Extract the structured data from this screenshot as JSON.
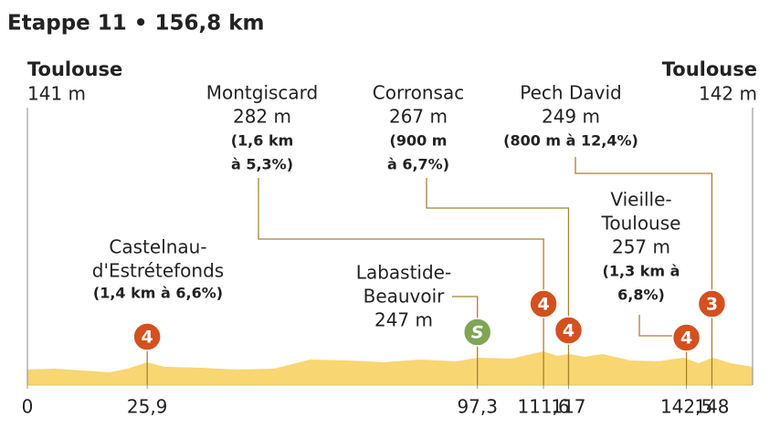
{
  "chart_data": {
    "type": "profile",
    "title": "Etappe 11 • 156,8 km",
    "xlim": [
      0,
      156.8
    ],
    "xticks": [
      0,
      {
        "value": 25.9,
        "label": "25,9"
      },
      {
        "value": 97.3,
        "label": "97,3"
      },
      {
        "value": 111.6,
        "label": "111,6"
      },
      117,
      {
        "value": 142.5,
        "label": "142,5"
      },
      148
    ],
    "start": {
      "name": "Toulouse",
      "altitude": "141 m"
    },
    "finish": {
      "name": "Toulouse",
      "altitude": "142 m"
    },
    "points": [
      {
        "name": [
          "Castelnau-",
          "d'Estrétefonds"
        ],
        "detail": [
          "(1,4 km à 6,6%)"
        ],
        "km": 25.9,
        "marker": 4,
        "color": "#d4501f"
      },
      {
        "name": [
          "Labastide-",
          "Beauvoir"
        ],
        "altitude": "247 m",
        "km": 97.3,
        "marker": "S",
        "color": "#7fa556"
      },
      {
        "name": [
          "Montgiscard"
        ],
        "altitude": "282 m",
        "detail": [
          "(1,6 km",
          "à 5,3%)"
        ],
        "km": 111.6,
        "marker": 4,
        "color": "#d4501f"
      },
      {
        "name": [
          "Corronsac"
        ],
        "altitude": "267 m",
        "detail": [
          "(900 m",
          "à 6,7%)"
        ],
        "km": 117,
        "marker": 4,
        "color": "#d4501f"
      },
      {
        "name": [
          "Vieille-",
          "Toulouse"
        ],
        "altitude": "257 m",
        "detail": [
          "(1,3 km à",
          "6,8%)"
        ],
        "km": 142.5,
        "marker": 4,
        "color": "#d4501f"
      },
      {
        "name": [
          "Pech David"
        ],
        "altitude": "249 m",
        "detail": [
          "(800 m à 12,4%)"
        ],
        "km": 148,
        "marker": 3,
        "color": "#d4501f"
      }
    ]
  }
}
